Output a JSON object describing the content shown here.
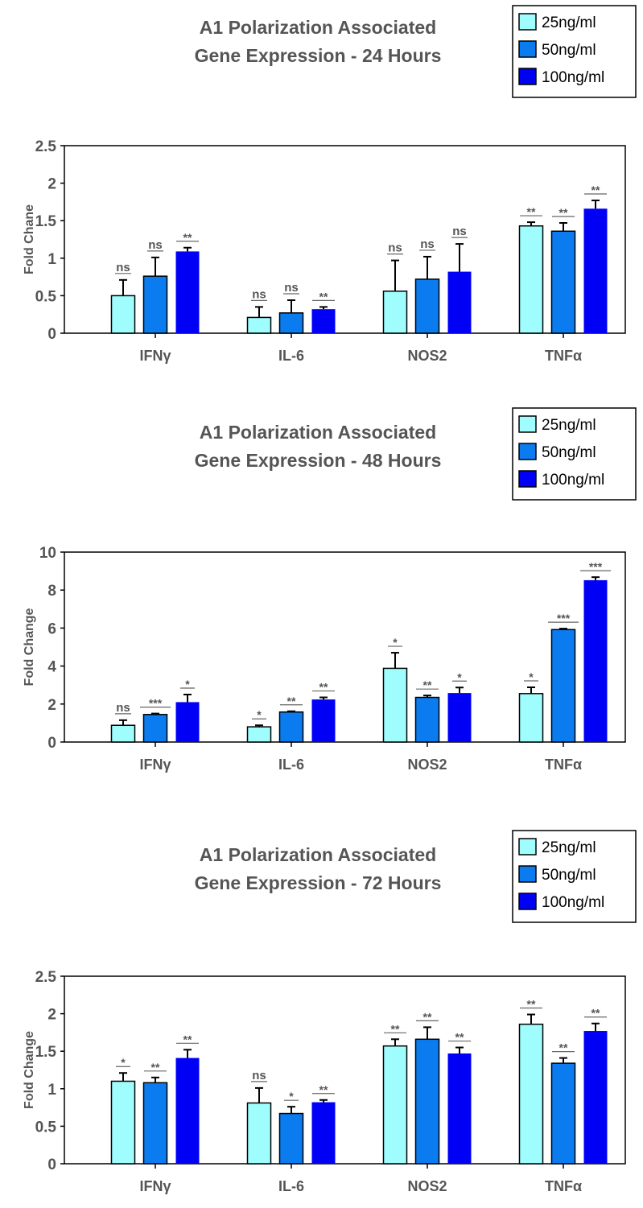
{
  "colors": {
    "25ng/ml": "#9ffdfd",
    "50ng/ml": "#0a7cf0",
    "100ng/ml": "#0000f5",
    "text": "#555555"
  },
  "chart_data": [
    {
      "type": "bar",
      "title": [
        "A1 Polarization Associated",
        "Gene Expression - 24 Hours"
      ],
      "ylabel": "Fold Chane",
      "xlabel": "",
      "ylim": [
        0,
        2.5
      ],
      "yticks": [
        "0",
        "0.5",
        "1",
        "1.5",
        "2",
        "2.5"
      ],
      "ytick_values": [
        0,
        0.5,
        1,
        1.5,
        2,
        2.5
      ],
      "categories": [
        "IFNγ",
        "IL-6",
        "NOS2",
        "TNFα"
      ],
      "legend": {
        "placement": "top-right",
        "entries": [
          "25ng/ml",
          "50ng/ml",
          "100ng/ml"
        ]
      },
      "series": [
        {
          "name": "25ng/ml",
          "values": [
            0.5,
            0.21,
            0.56,
            1.43
          ],
          "error_top": [
            0.71,
            0.35,
            0.97,
            1.48
          ],
          "significance": [
            "ns",
            "ns",
            "ns",
            "**"
          ]
        },
        {
          "name": "50ng/ml",
          "values": [
            0.76,
            0.27,
            0.72,
            1.36
          ],
          "error_top": [
            1.01,
            0.44,
            1.02,
            1.47
          ],
          "significance": [
            "ns",
            "ns",
            "ns",
            "**"
          ]
        },
        {
          "name": "100ng/ml",
          "values": [
            1.09,
            0.32,
            0.82,
            1.66
          ],
          "error_top": [
            1.14,
            0.35,
            1.19,
            1.77
          ],
          "significance": [
            "**",
            "**",
            "ns",
            "**"
          ]
        }
      ]
    },
    {
      "type": "bar",
      "title": [
        "A1 Polarization Associated",
        "Gene Expression - 48 Hours"
      ],
      "ylabel": "Fold Change",
      "xlabel": "",
      "ylim": [
        0,
        10
      ],
      "yticks": [
        "0",
        "2",
        "4",
        "6",
        "8",
        "10"
      ],
      "ytick_values": [
        0,
        2,
        4,
        6,
        8,
        10
      ],
      "categories": [
        "IFNγ",
        "IL-6",
        "NOS2",
        "TNFα"
      ],
      "legend": {
        "placement": "top-right",
        "entries": [
          "25ng/ml",
          "50ng/ml",
          "100ng/ml"
        ]
      },
      "series": [
        {
          "name": "25ng/ml",
          "values": [
            0.88,
            0.8,
            3.88,
            2.55
          ],
          "error_top": [
            1.15,
            0.88,
            4.7,
            2.88
          ],
          "significance": [
            "ns",
            "*",
            "*",
            "*"
          ]
        },
        {
          "name": "50ng/ml",
          "values": [
            1.45,
            1.58,
            2.35,
            5.92
          ],
          "error_top": [
            1.5,
            1.62,
            2.45,
            5.97
          ],
          "significance": [
            "***",
            "**",
            "**",
            "***"
          ]
        },
        {
          "name": "100ng/ml",
          "values": [
            2.1,
            2.24,
            2.58,
            8.52
          ],
          "error_top": [
            2.5,
            2.35,
            2.87,
            8.68
          ],
          "significance": [
            "*",
            "**",
            "*",
            "***"
          ]
        }
      ]
    },
    {
      "type": "bar",
      "title": [
        "A1 Polarization Associated",
        "Gene Expression - 72 Hours"
      ],
      "ylabel": "Fold Change",
      "xlabel": "",
      "ylim": [
        0,
        2.5
      ],
      "yticks": [
        "0",
        "0.5",
        "1",
        "1.5",
        "2",
        "2.5"
      ],
      "ytick_values": [
        0,
        0.5,
        1,
        1.5,
        2,
        2.5
      ],
      "categories": [
        "IFNγ",
        "IL-6",
        "NOS2",
        "TNFα"
      ],
      "legend": {
        "placement": "top-right",
        "entries": [
          "25ng/ml",
          "50ng/ml",
          "100ng/ml"
        ]
      },
      "series": [
        {
          "name": "25ng/ml",
          "values": [
            1.1,
            0.81,
            1.57,
            1.86
          ],
          "error_top": [
            1.21,
            1.01,
            1.66,
            1.99
          ],
          "significance": [
            "*",
            "ns",
            "**",
            "**"
          ]
        },
        {
          "name": "50ng/ml",
          "values": [
            1.08,
            0.67,
            1.66,
            1.34
          ],
          "error_top": [
            1.15,
            0.76,
            1.82,
            1.41
          ],
          "significance": [
            "**",
            "*",
            "**",
            "**"
          ]
        },
        {
          "name": "100ng/ml",
          "values": [
            1.41,
            0.82,
            1.47,
            1.77
          ],
          "error_top": [
            1.52,
            0.85,
            1.55,
            1.87
          ],
          "significance": [
            "**",
            "**",
            "**",
            "**"
          ]
        }
      ]
    }
  ]
}
